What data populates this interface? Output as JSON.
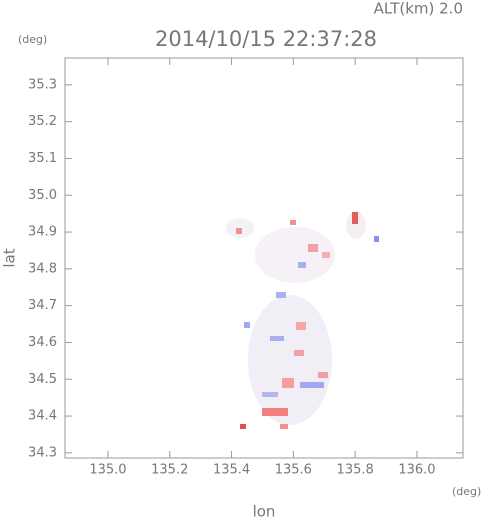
{
  "chart_data": {
    "type": "map",
    "title": "2014/10/15 22:37:28",
    "annotation": "ALT(km) 2.0",
    "y_unit": "(deg)",
    "x_unit": "(deg)",
    "xlabel": "lon",
    "ylabel": "lat",
    "xlim": [
      134.861,
      136.149
    ],
    "ylim": [
      34.286,
      35.373
    ],
    "xticks": [
      {
        "value": 135,
        "label": "135.0"
      },
      135.2,
      135.4,
      135.6,
      135.8,
      {
        "value": 136,
        "label": "136.0"
      }
    ],
    "yticks": [
      34.3,
      34.4,
      34.5,
      34.6,
      34.7,
      34.8,
      34.9,
      {
        "value": 35,
        "label": "35.0"
      },
      35.1,
      35.2,
      35.3
    ]
  }
}
